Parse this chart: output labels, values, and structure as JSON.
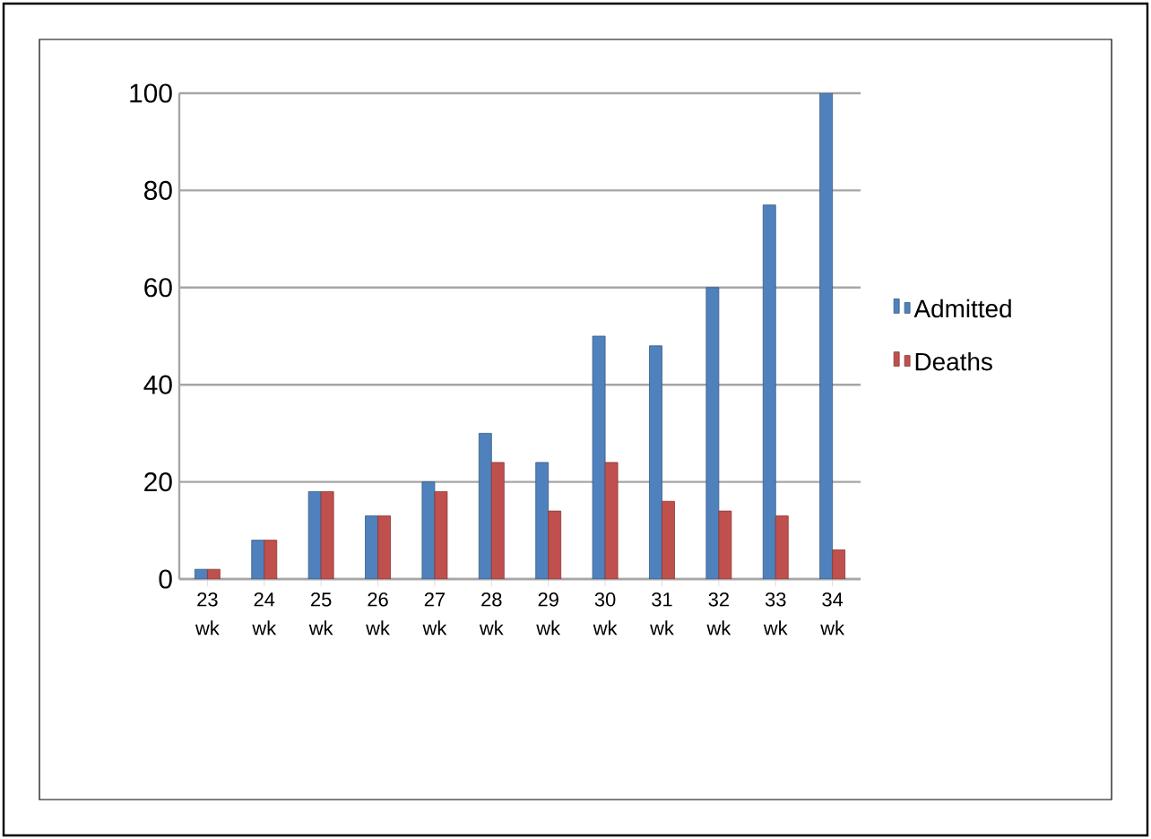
{
  "chart_data": {
    "type": "bar",
    "categories": [
      "23 wk",
      "24 wk",
      "25 wk",
      "26 wk",
      "27 wk",
      "28 wk",
      "29 wk",
      "30 wk",
      "31 wk",
      "32 wk",
      "33 wk",
      "34 wk"
    ],
    "series": [
      {
        "name": "Admitted",
        "color": "#4f81bd",
        "values": [
          2,
          8,
          18,
          13,
          20,
          30,
          24,
          50,
          48,
          60,
          77,
          100
        ]
      },
      {
        "name": "Deaths",
        "color": "#c0504d",
        "values": [
          2,
          8,
          18,
          13,
          18,
          24,
          14,
          24,
          16,
          14,
          13,
          6
        ]
      }
    ],
    "ylim": [
      0,
      100
    ],
    "yticks": [
      0,
      20,
      40,
      60,
      80,
      100
    ],
    "grid": "y",
    "legend": "right"
  }
}
